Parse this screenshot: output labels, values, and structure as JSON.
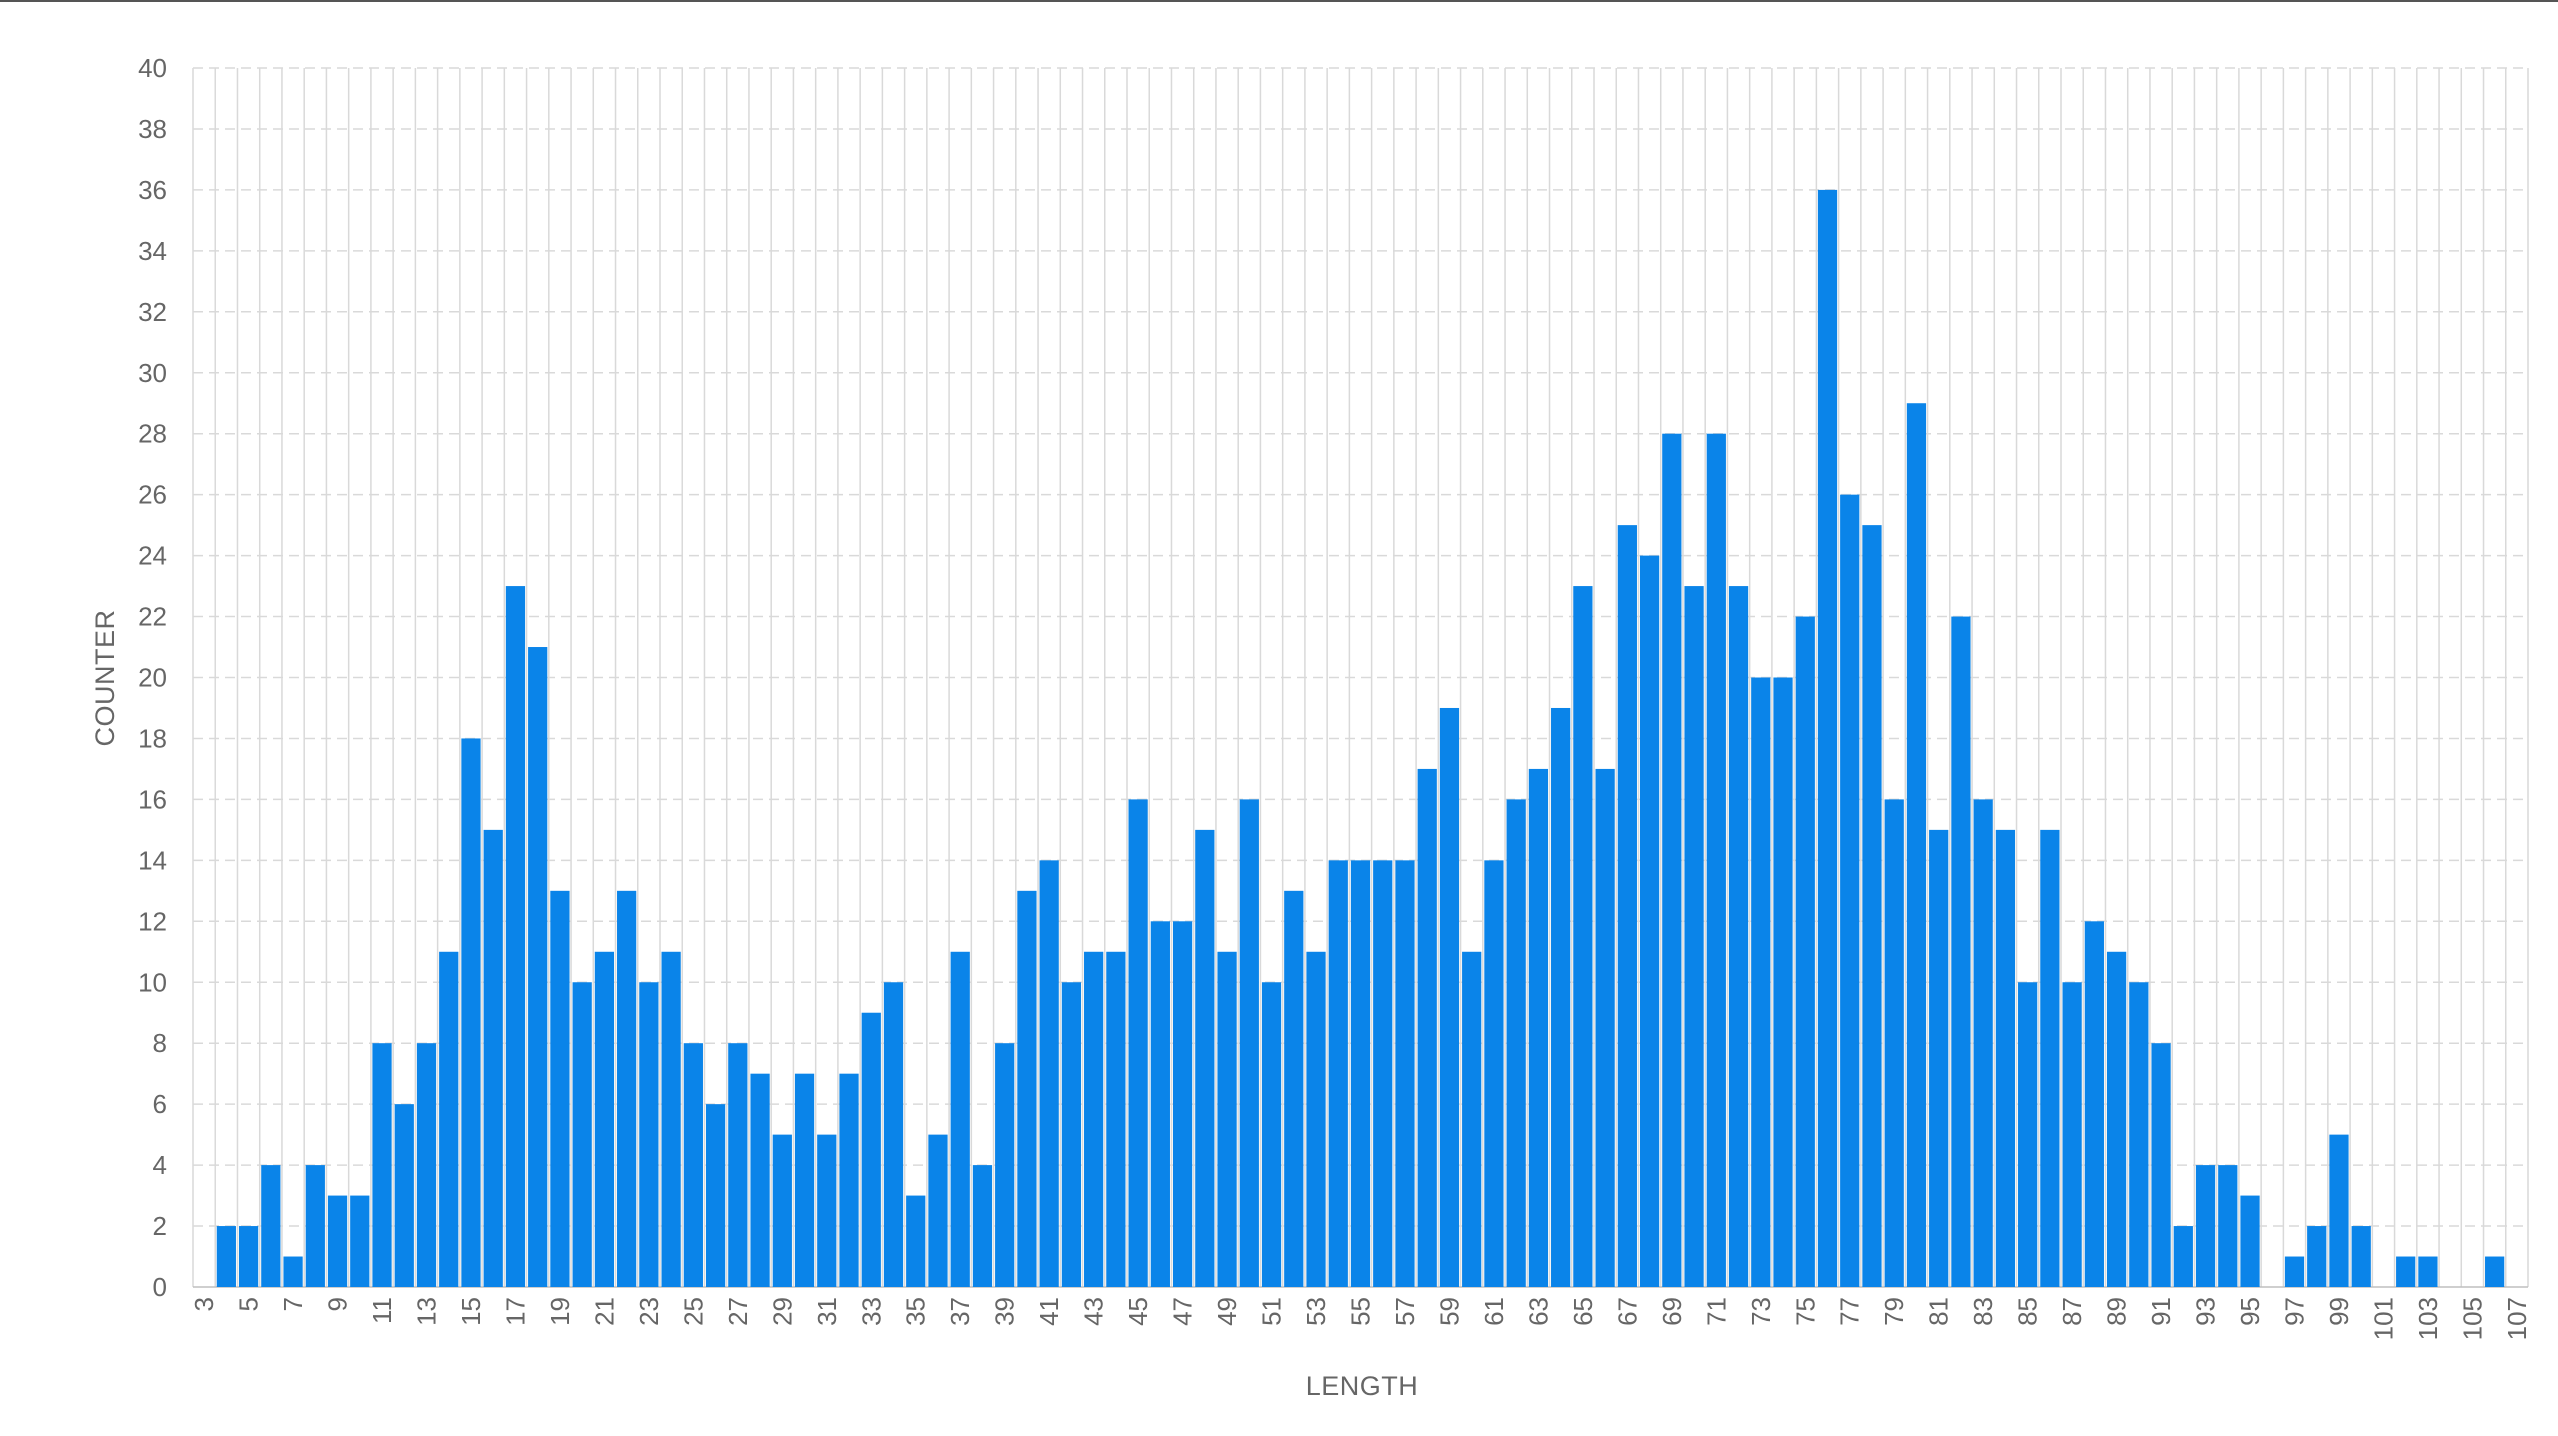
{
  "chart_data": {
    "type": "bar",
    "xlabel": "LENGTH",
    "ylabel": "COUNTER",
    "ylim": [
      0,
      40
    ],
    "yticks": [
      0,
      2,
      4,
      6,
      8,
      10,
      12,
      14,
      16,
      18,
      20,
      22,
      24,
      26,
      28,
      30,
      32,
      34,
      36,
      38,
      40
    ],
    "x": [
      3,
      4,
      5,
      6,
      7,
      8,
      9,
      10,
      11,
      12,
      13,
      14,
      15,
      16,
      17,
      18,
      19,
      20,
      21,
      22,
      23,
      24,
      25,
      26,
      27,
      28,
      29,
      30,
      31,
      32,
      33,
      34,
      35,
      36,
      37,
      38,
      39,
      40,
      41,
      42,
      43,
      44,
      45,
      46,
      47,
      48,
      49,
      50,
      51,
      52,
      53,
      54,
      55,
      56,
      57,
      58,
      59,
      60,
      61,
      62,
      63,
      64,
      65,
      66,
      67,
      68,
      69,
      70,
      71,
      72,
      73,
      74,
      75,
      76,
      77,
      78,
      79,
      80,
      81,
      82,
      83,
      84,
      85,
      86,
      87,
      88,
      89,
      90,
      91,
      92,
      93,
      94,
      95,
      96,
      97,
      98,
      99,
      100,
      101,
      102,
      103,
      104,
      105,
      106,
      107
    ],
    "xtick_labels": [
      "3",
      "5",
      "7",
      "9",
      "11",
      "13",
      "15",
      "17",
      "19",
      "21",
      "23",
      "25",
      "27",
      "29",
      "31",
      "33",
      "35",
      "37",
      "39",
      "41",
      "43",
      "45",
      "47",
      "49",
      "51",
      "53",
      "55",
      "57",
      "59",
      "61",
      "63",
      "65",
      "67",
      "69",
      "71",
      "73",
      "75",
      "77",
      "79",
      "81",
      "83",
      "85",
      "87",
      "89",
      "91",
      "93",
      "95",
      "97",
      "99",
      "101",
      "103",
      "105",
      "107"
    ],
    "values": [
      0,
      2,
      2,
      4,
      1,
      4,
      3,
      3,
      8,
      6,
      8,
      11,
      18,
      15,
      23,
      21,
      13,
      10,
      11,
      13,
      10,
      11,
      8,
      6,
      8,
      7,
      5,
      7,
      5,
      7,
      9,
      10,
      3,
      5,
      11,
      4,
      8,
      13,
      14,
      10,
      11,
      11,
      16,
      12,
      12,
      15,
      11,
      16,
      10,
      13,
      11,
      14,
      14,
      14,
      14,
      17,
      19,
      11,
      14,
      16,
      17,
      19,
      23,
      17,
      25,
      24,
      28,
      23,
      28,
      23,
      20,
      20,
      22,
      36,
      26,
      25,
      16,
      29,
      15,
      22,
      16,
      15,
      10,
      15,
      10,
      12,
      11,
      10,
      8,
      2,
      4,
      4,
      3,
      0,
      1,
      2,
      5,
      2,
      0,
      1,
      1,
      0,
      0,
      1,
      0
    ],
    "bar_color": "#0a84e9",
    "grid": true,
    "grid_color": "#d9d9d9"
  }
}
